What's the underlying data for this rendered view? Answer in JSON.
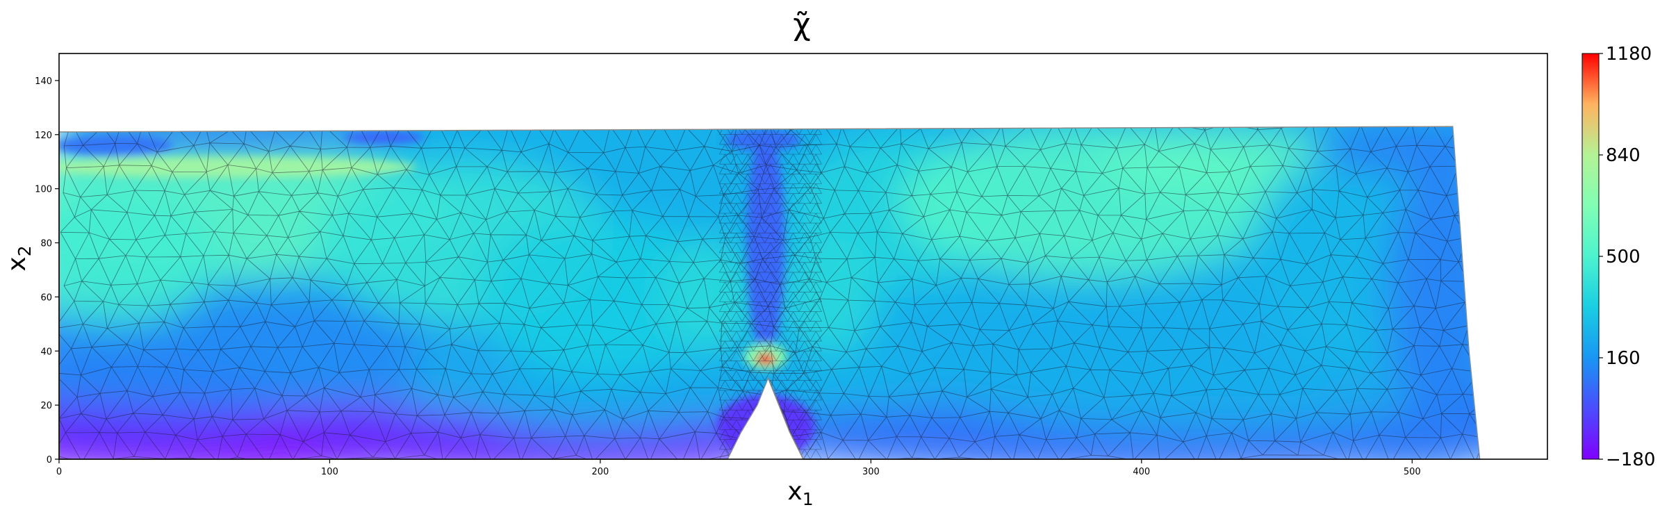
{
  "chart_data": {
    "type": "heatmap",
    "title": "χ̃",
    "xlabel": "x",
    "xlabel_subscript": "1",
    "ylabel": "x",
    "ylabel_subscript": "2",
    "xlim": [
      0,
      550
    ],
    "ylim": [
      0,
      150
    ],
    "xticks": [
      0,
      100,
      200,
      300,
      400,
      500
    ],
    "yticks": [
      0,
      20,
      40,
      60,
      80,
      100,
      120,
      140
    ],
    "grid": false,
    "colormap": "rainbow",
    "colorbar": {
      "range": [
        -180,
        1180
      ],
      "ticks": [
        -180,
        160,
        500,
        840,
        1180
      ],
      "tick_labels": [
        "−180",
        "160",
        "500",
        "840",
        "1180"
      ]
    },
    "domain_outline": [
      [
        0,
        0
      ],
      [
        247,
        0
      ],
      [
        252,
        10
      ],
      [
        258,
        20
      ],
      [
        262,
        30
      ],
      [
        266,
        20
      ],
      [
        270,
        10
      ],
      [
        275,
        0
      ],
      [
        525,
        0
      ],
      [
        521,
        40
      ],
      [
        515,
        123
      ],
      [
        0,
        121
      ]
    ],
    "mesh": "unstructured triangular finite-element mesh (shown as thin dark edges)",
    "field_description": [
      {
        "region": "bottom-left near x2=0",
        "approx_value": -160
      },
      {
        "region": "left mid-depth (x1≈0-120, x2≈60-110)",
        "approx_value": 560
      },
      {
        "region": "top-left surface band",
        "approx_value": 50
      },
      {
        "region": "central vertical column (x1≈255-270, x2≈40-120)",
        "approx_value": 40
      },
      {
        "region": "hotspot at tip of column (x1≈260, x2≈37)",
        "approx_value": 1180
      },
      {
        "region": "right mid-depth (x1≈330-440, x2≈70-120)",
        "approx_value": 520
      },
      {
        "region": "bottom-right",
        "approx_value": 100
      }
    ]
  }
}
